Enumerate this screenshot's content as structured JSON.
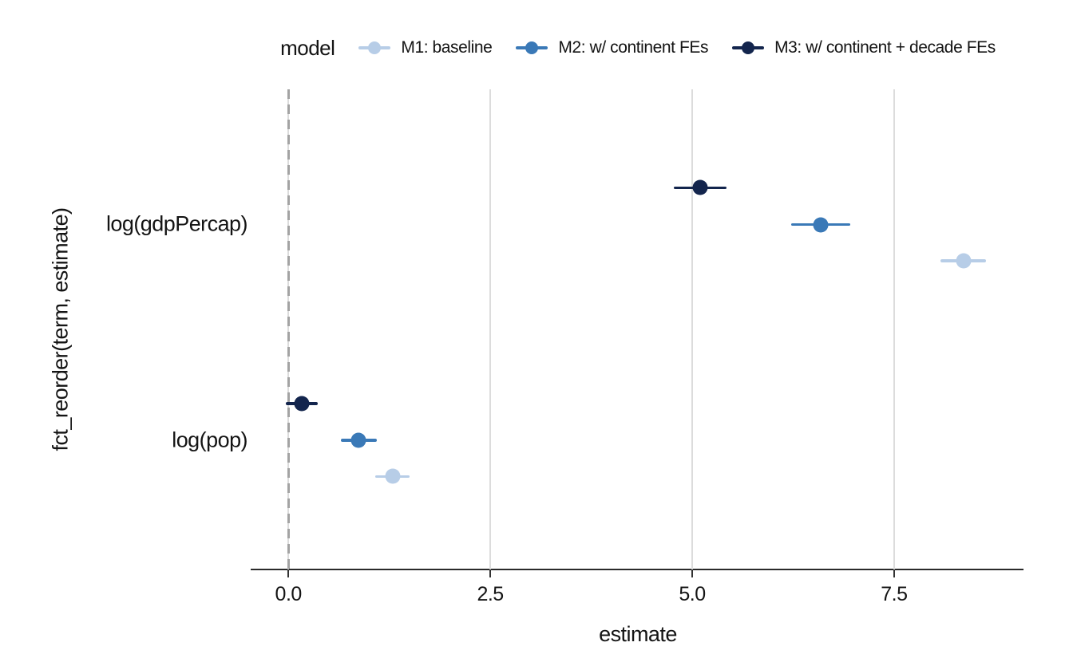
{
  "figure": {
    "background": "#ffffff",
    "text_color": "#141414",
    "grid_color": "#dcdcdc",
    "axis_line_color": "#2a2a2a",
    "reference_line_color": "#a3a3a3"
  },
  "legend": {
    "title": "model",
    "position": "top",
    "items": [
      {
        "label": "M1: baseline",
        "color": "#b7cde7"
      },
      {
        "label": "M2: w/ continent FEs",
        "color": "#3a79b7"
      },
      {
        "label": "M3: w/ continent + decade FEs",
        "color": "#13254d"
      }
    ]
  },
  "axes": {
    "x_title": "estimate",
    "y_title": "fct_reorder(term, estimate)",
    "x_tick_labels": [
      "0.0",
      "2.5",
      "5.0",
      "7.5"
    ],
    "y_category_labels": [
      "log(gdpPercap)",
      "log(pop)"
    ]
  },
  "chart_data": {
    "type": "scatter",
    "subtype": "dot-and-whisker coefficient plot (pointrange, dodged)",
    "title": "",
    "xlabel": "estimate",
    "ylabel": "fct_reorder(term, estimate)",
    "xlim": [
      -0.45,
      9.1
    ],
    "x_ticks": [
      0.0,
      2.5,
      5.0,
      7.5
    ],
    "categories": [
      "log(gdpPercap)",
      "log(pop)"
    ],
    "reference_line_x": 0,
    "grid": "vertical major gridlines only, white background",
    "legend_title": "model",
    "legend_position": "top",
    "series": [
      {
        "name": "M1: baseline",
        "color": "#b7cde7",
        "points": [
          {
            "term": "log(gdpPercap)",
            "estimate": 8.36,
            "conf_low": 8.07,
            "conf_high": 8.64
          },
          {
            "term": "log(pop)",
            "estimate": 1.29,
            "conf_low": 1.08,
            "conf_high": 1.5
          }
        ]
      },
      {
        "name": "M2: w/ continent FEs",
        "color": "#3a79b7",
        "points": [
          {
            "term": "log(gdpPercap)",
            "estimate": 6.59,
            "conf_low": 6.23,
            "conf_high": 6.96
          },
          {
            "term": "log(pop)",
            "estimate": 0.87,
            "conf_low": 0.65,
            "conf_high": 1.1
          }
        ]
      },
      {
        "name": "M3: w/ continent + decade FEs",
        "color": "#13254d",
        "points": [
          {
            "term": "log(gdpPercap)",
            "estimate": 5.1,
            "conf_low": 4.77,
            "conf_high": 5.43
          },
          {
            "term": "log(pop)",
            "estimate": 0.17,
            "conf_low": -0.03,
            "conf_high": 0.36
          }
        ]
      }
    ]
  }
}
